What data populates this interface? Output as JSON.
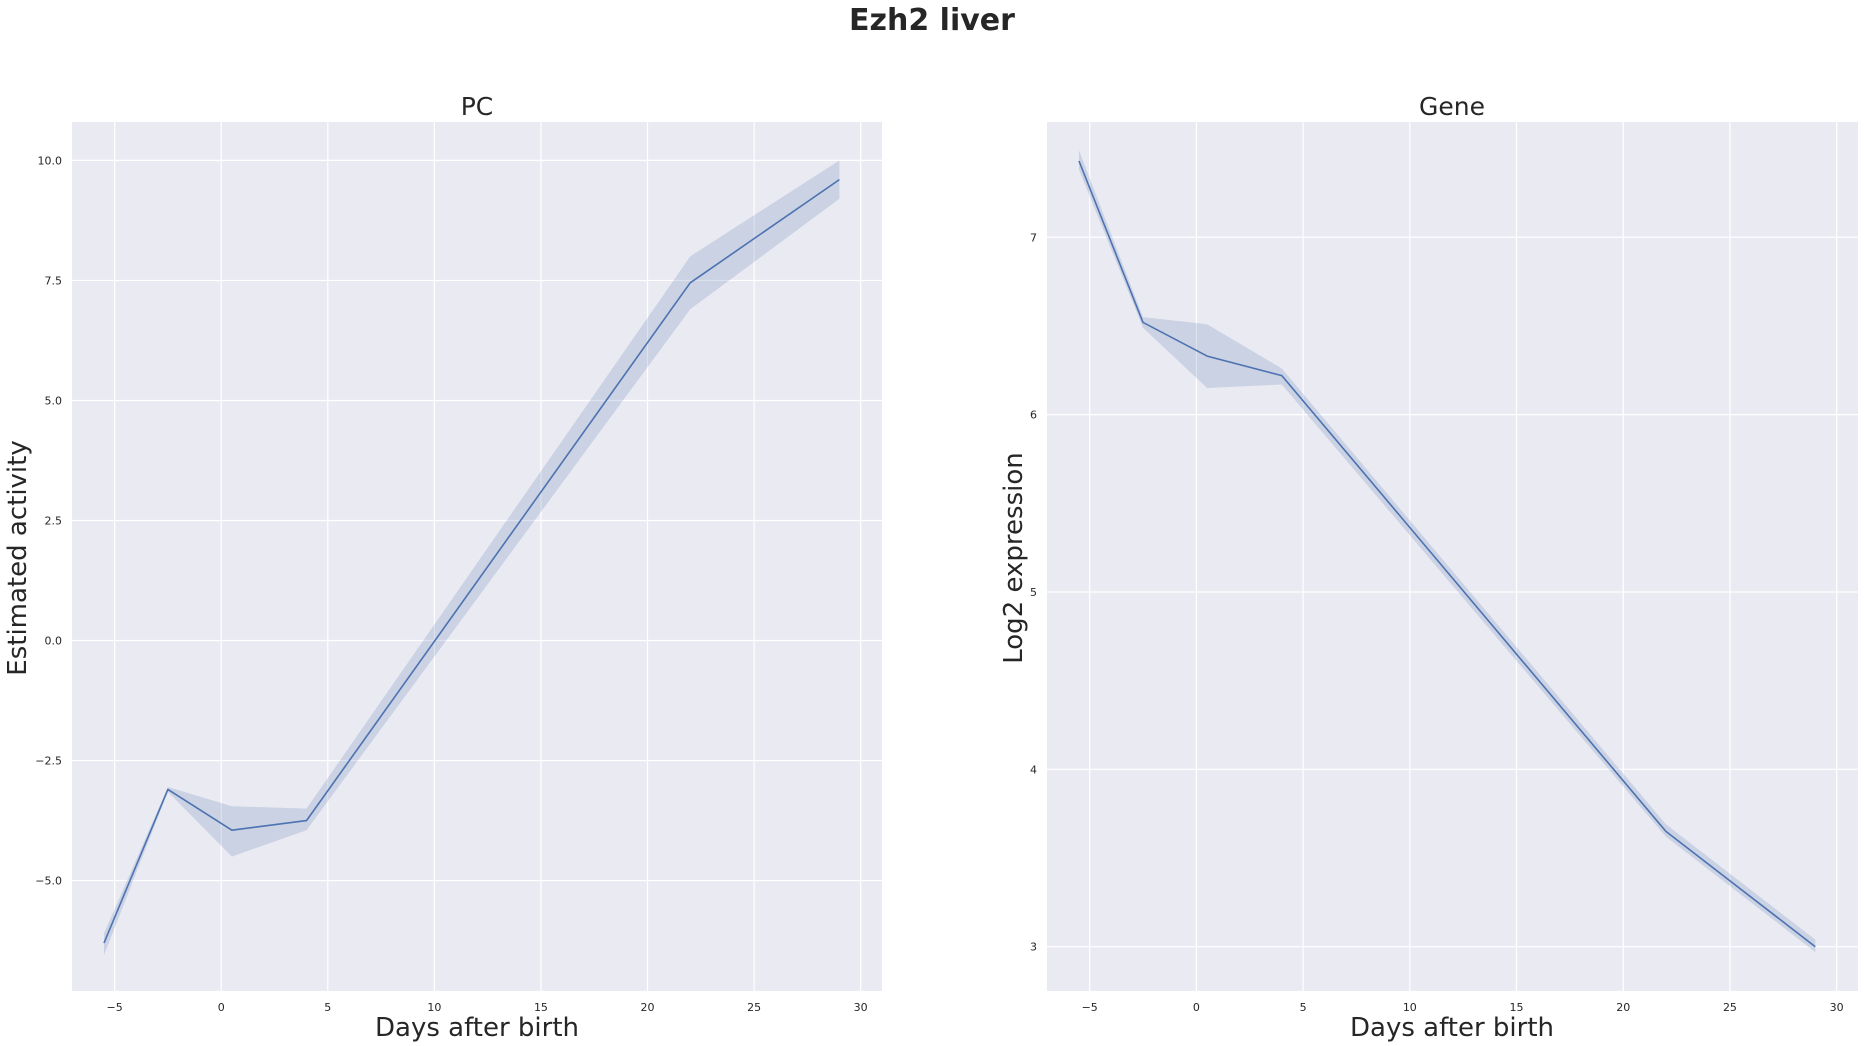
{
  "figure": {
    "title": "Ezh2 liver"
  },
  "colors": {
    "background": "#ffffff",
    "plot_background": "#eaeaf2",
    "grid": "#ffffff",
    "series": "#4c72b0",
    "text": "#262626"
  },
  "chart_data": [
    {
      "type": "line",
      "title": "PC",
      "xlabel": "Days after birth",
      "ylabel": "Estimated activity",
      "xlim": [
        -7,
        31
      ],
      "ylim": [
        -7.3,
        10.8
      ],
      "xticks": [
        -5,
        0,
        5,
        10,
        15,
        20,
        25,
        30
      ],
      "xtick_labels": [
        "−5",
        "0",
        "5",
        "10",
        "15",
        "20",
        "25",
        "30"
      ],
      "yticks": [
        -5,
        -2.5,
        0,
        2.5,
        5,
        7.5,
        10
      ],
      "ytick_labels": [
        "−5.0",
        "−2.5",
        "0.0",
        "2.5",
        "5.0",
        "7.5",
        "10.0"
      ],
      "grid": true,
      "series": [
        {
          "x": [
            -5.5,
            -2.5,
            0.5,
            4,
            22,
            29
          ],
          "y": [
            -6.3,
            -3.1,
            -3.95,
            -3.75,
            7.45,
            9.6
          ],
          "ci_low": [
            -6.55,
            -3.15,
            -4.5,
            -3.95,
            6.9,
            9.2
          ],
          "ci_high": [
            -6.1,
            -3.05,
            -3.45,
            -3.5,
            8.0,
            10.0
          ]
        }
      ]
    },
    {
      "type": "line",
      "title": "Gene",
      "xlabel": "Days after birth",
      "ylabel": "Log2 expression",
      "xlim": [
        -7,
        31
      ],
      "ylim": [
        2.75,
        7.65
      ],
      "xticks": [
        -5,
        0,
        5,
        10,
        15,
        20,
        25,
        30
      ],
      "xtick_labels": [
        "−5",
        "0",
        "5",
        "10",
        "15",
        "20",
        "25",
        "30"
      ],
      "yticks": [
        3,
        4,
        5,
        6,
        7
      ],
      "ytick_labels": [
        "3",
        "4",
        "5",
        "6",
        "7"
      ],
      "grid": true,
      "series": [
        {
          "x": [
            -5.5,
            -2.5,
            0.5,
            4,
            22,
            29
          ],
          "y": [
            7.43,
            6.52,
            6.33,
            6.22,
            3.65,
            3.0
          ],
          "ci_low": [
            7.38,
            6.49,
            6.15,
            6.17,
            3.62,
            2.97
          ],
          "ci_high": [
            7.49,
            6.55,
            6.51,
            6.26,
            3.69,
            3.04
          ]
        }
      ]
    }
  ]
}
